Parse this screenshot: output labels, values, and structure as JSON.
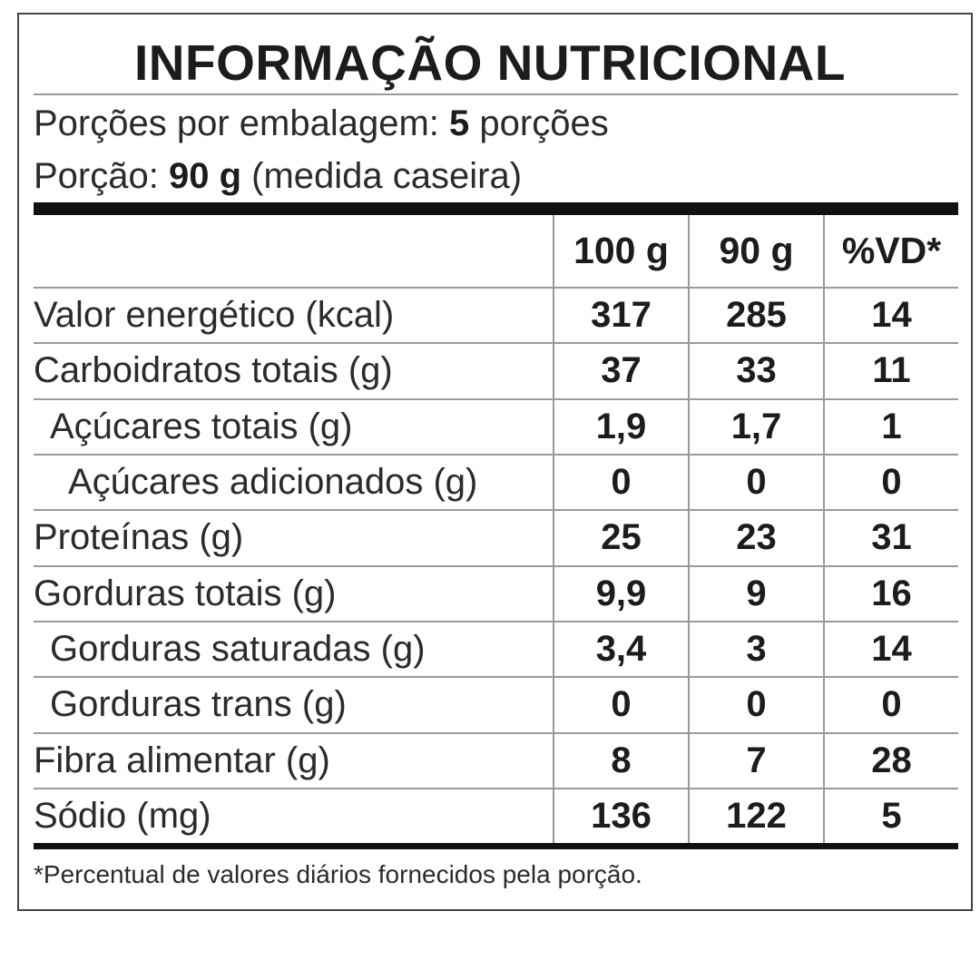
{
  "label": {
    "title": "INFORMAÇÃO NUTRICIONAL",
    "servings_label": "Porções por embalagem:",
    "servings_value": "5",
    "servings_unit": "porções",
    "portion_label": "Porção:",
    "portion_value": "90 g",
    "portion_note": "(medida caseira)",
    "columns": [
      "",
      "100 g",
      "90 g",
      "%VD*"
    ],
    "rows": [
      {
        "name": "Valor energético (kcal)",
        "indent": 0,
        "per100": "317",
        "perPortion": "285",
        "vd": "14"
      },
      {
        "name": "Carboidratos totais (g)",
        "indent": 0,
        "per100": "37",
        "perPortion": "33",
        "vd": "11"
      },
      {
        "name": "Açúcares totais (g)",
        "indent": 1,
        "per100": "1,9",
        "perPortion": "1,7",
        "vd": "1"
      },
      {
        "name": "Açúcares adicionados (g)",
        "indent": 2,
        "per100": "0",
        "perPortion": "0",
        "vd": "0"
      },
      {
        "name": "Proteínas (g)",
        "indent": 0,
        "per100": "25",
        "perPortion": "23",
        "vd": "31"
      },
      {
        "name": "Gorduras totais (g)",
        "indent": 0,
        "per100": "9,9",
        "perPortion": "9",
        "vd": "16"
      },
      {
        "name": "Gorduras saturadas (g)",
        "indent": 1,
        "per100": "3,4",
        "perPortion": "3",
        "vd": "14"
      },
      {
        "name": "Gorduras trans (g)",
        "indent": 1,
        "per100": "0",
        "perPortion": "0",
        "vd": "0"
      },
      {
        "name": "Fibra alimentar (g)",
        "indent": 0,
        "per100": "8",
        "perPortion": "7",
        "vd": "28"
      },
      {
        "name": "Sódio (mg)",
        "indent": 0,
        "per100": "136",
        "perPortion": "122",
        "vd": "5"
      }
    ],
    "footnote": "*Percentual de valores diários fornecidos pela porção."
  }
}
